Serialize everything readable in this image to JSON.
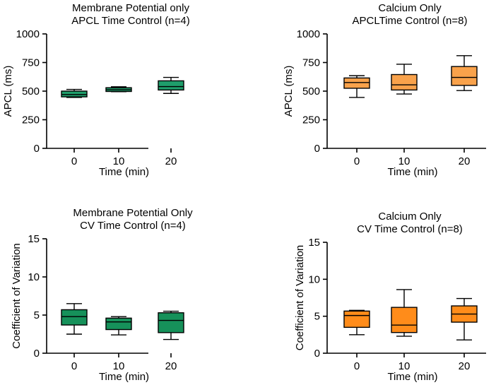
{
  "chart_data": [
    {
      "type": "box",
      "title": [
        "Membrane Potential only",
        "APCL Time Control (n=4)"
      ],
      "xlabel": "Time (min)",
      "ylabel": "APCL (ms)",
      "categories": [
        "0",
        "10",
        "20"
      ],
      "ylim": [
        0,
        1000
      ],
      "yticks": [
        "0",
        "250",
        "500",
        "750",
        "1000"
      ],
      "ytick_values": [
        0,
        250,
        500,
        750,
        1000
      ],
      "color": "#1f9e6b",
      "boxes": [
        {
          "min": 445,
          "q1": 450,
          "median": 470,
          "q3": 500,
          "max": 515
        },
        {
          "min": 495,
          "q1": 497,
          "median": 512,
          "q3": 530,
          "max": 538
        },
        {
          "min": 480,
          "q1": 510,
          "median": 540,
          "q3": 590,
          "max": 620
        }
      ]
    },
    {
      "type": "box",
      "title": [
        "Calcium Only",
        "APCLTime Control (n=8)"
      ],
      "xlabel": "Time (min)",
      "ylabel": "APCL (ms)",
      "categories": [
        "0",
        "10",
        "20"
      ],
      "ylim": [
        0,
        1000
      ],
      "yticks": [
        "0",
        "250",
        "500",
        "750",
        "1000"
      ],
      "ytick_values": [
        0,
        250,
        500,
        750,
        1000
      ],
      "color": "#f9a24b",
      "boxes": [
        {
          "min": 445,
          "q1": 525,
          "median": 575,
          "q3": 615,
          "max": 635
        },
        {
          "min": 475,
          "q1": 510,
          "median": 555,
          "q3": 645,
          "max": 735
        },
        {
          "min": 505,
          "q1": 550,
          "median": 620,
          "q3": 715,
          "max": 810
        }
      ]
    },
    {
      "type": "box",
      "title": [
        "Membrane Potential Only",
        "CV Time Control (n=4)"
      ],
      "xlabel": "Time (min)",
      "ylabel": "Coefficient of  Variation",
      "categories": [
        "0",
        "10",
        "20"
      ],
      "ylim": [
        0,
        15
      ],
      "yticks": [
        "0",
        "5",
        "10",
        "15"
      ],
      "ytick_values": [
        0,
        5,
        10,
        15
      ],
      "color": "#16915a",
      "boxes": [
        {
          "min": 2.5,
          "q1": 3.7,
          "median": 4.8,
          "q3": 5.7,
          "max": 6.5
        },
        {
          "min": 2.4,
          "q1": 3.1,
          "median": 4.1,
          "q3": 4.6,
          "max": 4.8
        },
        {
          "min": 1.8,
          "q1": 2.7,
          "median": 4.3,
          "q3": 5.3,
          "max": 5.5
        }
      ]
    },
    {
      "type": "box",
      "title": [
        "Calcium Only",
        "CV Time Control (n=8)"
      ],
      "xlabel": "Time (min)",
      "ylabel": "Coefficient of Variation",
      "categories": [
        "0",
        "10",
        "20"
      ],
      "ylim": [
        0,
        15
      ],
      "yticks": [
        "0",
        "5",
        "10",
        "15"
      ],
      "ytick_values": [
        0,
        5,
        10,
        15
      ],
      "color": "#ff8c1a",
      "boxes": [
        {
          "min": 2.5,
          "q1": 3.5,
          "median": 5.1,
          "q3": 5.7,
          "max": 5.8
        },
        {
          "min": 2.3,
          "q1": 2.8,
          "median": 3.8,
          "q3": 6.2,
          "max": 8.6
        },
        {
          "min": 1.8,
          "q1": 4.2,
          "median": 5.3,
          "q3": 6.4,
          "max": 7.4
        }
      ]
    }
  ]
}
